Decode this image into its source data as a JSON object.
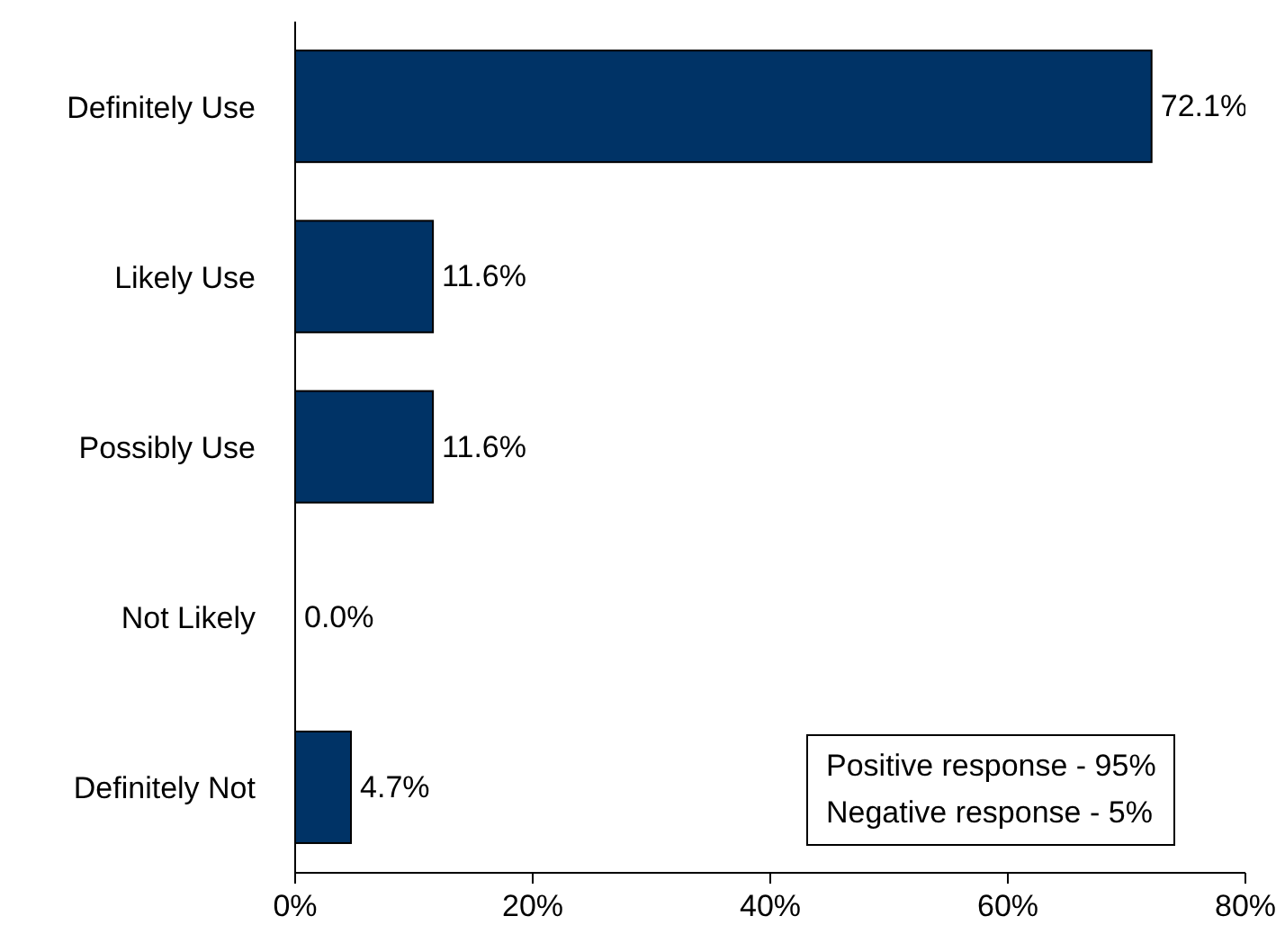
{
  "chart_data": {
    "type": "bar",
    "orientation": "horizontal",
    "categories": [
      "Definitely Use",
      "Likely Use",
      "Possibly Use",
      "Not Likely",
      "Definitely Not"
    ],
    "values": [
      72.1,
      11.6,
      11.6,
      0.0,
      4.7
    ],
    "value_labels": [
      "72.1%",
      "11.6%",
      "11.6%",
      "0.0%",
      "4.7%"
    ],
    "color": "#003366",
    "xlim": [
      0,
      80
    ],
    "xticks": [
      {
        "value": 0,
        "label": "0%"
      },
      {
        "value": 20,
        "label": "20%"
      },
      {
        "value": 40,
        "label": "40%"
      },
      {
        "value": 60,
        "label": "60%"
      },
      {
        "value": 80,
        "label": "80%"
      }
    ],
    "grid": false,
    "annotations": [
      "Positive response - 95%",
      "Negative response - 5%"
    ]
  }
}
